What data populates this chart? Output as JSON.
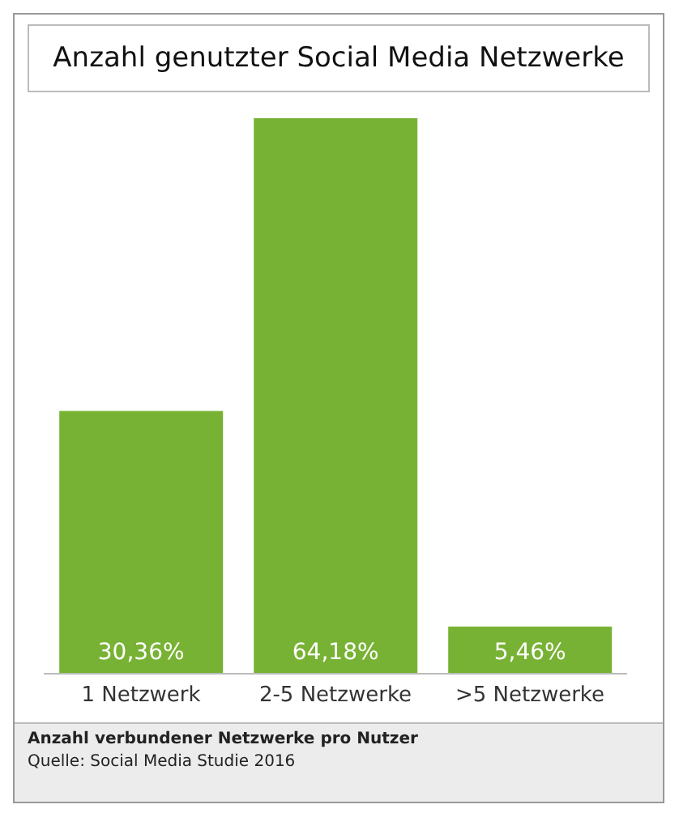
{
  "chart_data": {
    "type": "bar",
    "title": "Anzahl genutzter Social Media Netzwerke",
    "categories": [
      "1 Netzwerk",
      "2-5 Netzwerke",
      ">5 Netzwerke"
    ],
    "values": [
      30.36,
      64.18,
      5.46
    ],
    "value_labels": [
      "30,36%",
      "64,18%",
      "5,46%"
    ],
    "color": "#78b234",
    "annotations": [
      "Anzahl verbundener Netzwerke pro Nutzer",
      "Quelle: Social Media Studie 2016"
    ]
  }
}
